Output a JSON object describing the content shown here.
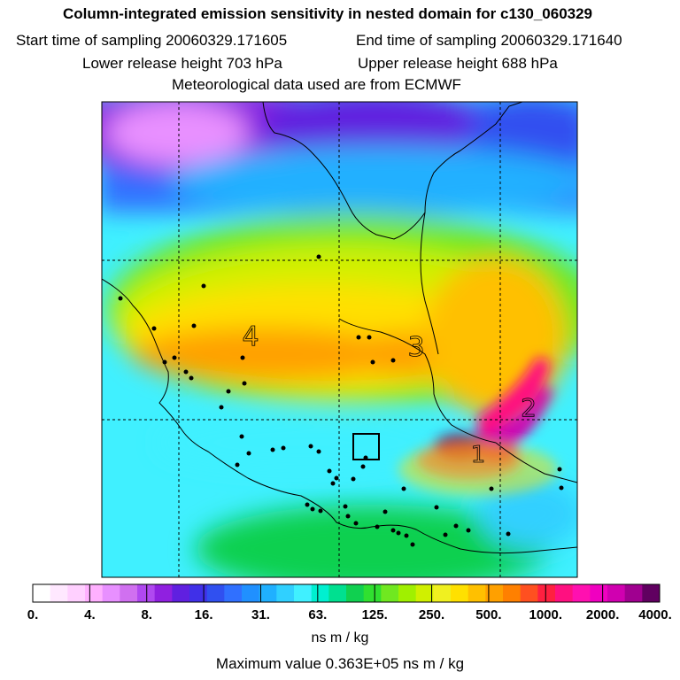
{
  "header": {
    "title": "Column-integrated emission sensitivity in nested domain for c130_060329",
    "start_label": "Start time of sampling 20060329.171605",
    "end_label": "End time of sampling 20060329.171640",
    "lower_label": "Lower release height  703 hPa",
    "upper_label": "Upper release height  688 hPa",
    "met_label": "Meteorological data used are from ECMWF"
  },
  "chart_data": {
    "type": "heatmap",
    "title": "Column-integrated emission sensitivity in nested domain for c130_060329",
    "colorbar_unit": "ns m / kg",
    "colorbar_ticks": [
      "0.",
      "4.",
      "8.",
      "16.",
      "31.",
      "63.",
      "125.",
      "250.",
      "500.",
      "1000.",
      "2000.",
      "4000."
    ],
    "colorbar_tick_values": [
      0,
      4,
      8,
      16,
      31,
      63,
      125,
      250,
      500,
      1000,
      2000,
      4000
    ],
    "colorbar_colors": [
      "#ffffff",
      "#ffe8ff",
      "#ffd0ff",
      "#ffb0ff",
      "#e890ff",
      "#d070f0",
      "#b048f0",
      "#9020e0",
      "#6020e0",
      "#4030e8",
      "#3050f0",
      "#3070ff",
      "#2090ff",
      "#20b0ff",
      "#30d0ff",
      "#40f0ff",
      "#00f0d0",
      "#00e090",
      "#10d050",
      "#30e030",
      "#70e820",
      "#a0f000",
      "#d0f000",
      "#f0f020",
      "#ffe000",
      "#ffc000",
      "#ffa000",
      "#ff8000",
      "#ff5020",
      "#ff2040",
      "#ff1080",
      "#ff10b0",
      "#f000c0",
      "#d000b0",
      "#a00090",
      "#600060"
    ],
    "map_labels": [
      "4",
      "3",
      "2",
      "1"
    ],
    "maximum_value_text": "Maximum value  0.363E+05 ns m / kg"
  }
}
